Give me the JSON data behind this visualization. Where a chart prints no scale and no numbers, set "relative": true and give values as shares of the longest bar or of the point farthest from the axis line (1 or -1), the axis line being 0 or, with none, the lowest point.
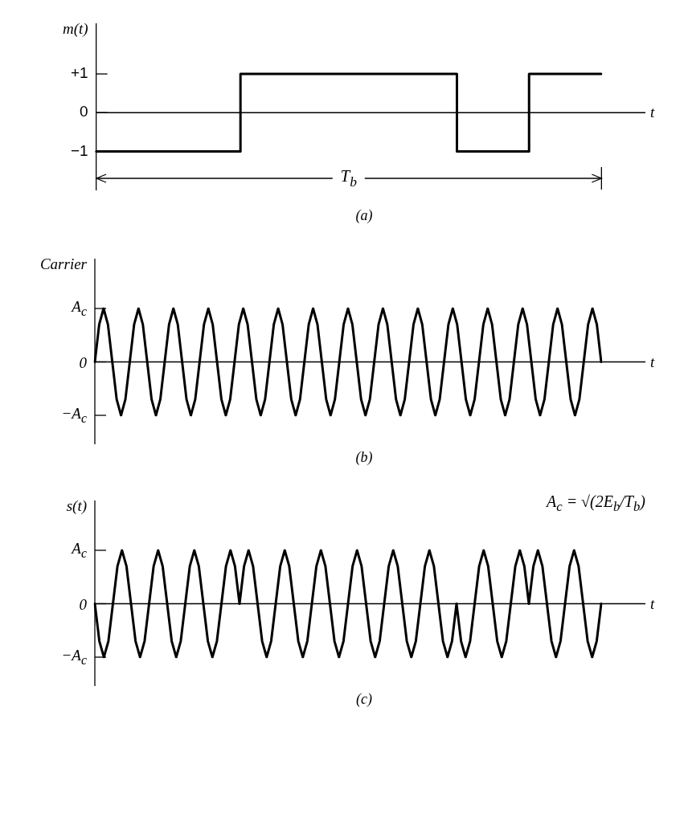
{
  "chart_data": [
    {
      "type": "step",
      "title": "(a)",
      "ylabel": "m(t)",
      "xlabel": "t",
      "ylim": [
        -2,
        2.3
      ],
      "yticks": [
        {
          "value": 1,
          "label": "+1"
        },
        0,
        {
          "value": -1,
          "label": "−1"
        }
      ],
      "tick_labels": "y",
      "marker": "none",
      "categories": [
        null,
        null,
        null,
        null,
        null,
        null,
        null,
        null,
        null,
        null,
        null,
        null,
        null,
        null,
        null
      ],
      "series": [
        {
          "color": "#000000",
          "values": [
            -1,
            -1,
            -1,
            -1,
            1,
            1,
            1,
            1,
            1,
            1,
            -1,
            -1,
            1,
            1,
            1
          ]
        }
      ],
      "annotations": [
        {
          "text": "T$_{b}$",
          "y": -1.7
        }
      ]
    },
    {
      "type": "line",
      "title": "(b)",
      "ylabel": "Carrier",
      "xlabel": "t",
      "relative": true,
      "tick_labels": false,
      "marker": "none",
      "annotations": [
        "A$_{c}$",
        "0",
        "−A$_{c}$"
      ],
      "categories": [
        null,
        null,
        null,
        null,
        null,
        null,
        null,
        null,
        null,
        null,
        null,
        null,
        null,
        null,
        null,
        null,
        null,
        null,
        null,
        null,
        null,
        null,
        null,
        null,
        null,
        null,
        null,
        null,
        null,
        null,
        null,
        null,
        null,
        null,
        null,
        null,
        null,
        null,
        null,
        null,
        null,
        null,
        null,
        null,
        null,
        null,
        null,
        null,
        null,
        null,
        null,
        null,
        null,
        null,
        null,
        null,
        null,
        null,
        null,
        null,
        null,
        null,
        null,
        null,
        null,
        null,
        null,
        null,
        null,
        null,
        null,
        null,
        null,
        null,
        null,
        null,
        null,
        null,
        null,
        null,
        null,
        null,
        null,
        null,
        null,
        null,
        null,
        null,
        null,
        null,
        null,
        null,
        null,
        null,
        null,
        null,
        null,
        null,
        null,
        null,
        null,
        null,
        null,
        null,
        null,
        null,
        null,
        null,
        null,
        null,
        null,
        null,
        null,
        null,
        null,
        null,
        null
      ],
      "series": [
        {
          "color": "#000000",
          "values": [
            0,
            0.7,
            1,
            0.7,
            0,
            -0.7,
            -1,
            -0.7,
            0,
            0.7,
            1,
            0.7,
            0,
            -0.7,
            -1,
            -0.7,
            0,
            0.7,
            1,
            0.7,
            0,
            -0.7,
            -1,
            -0.7,
            0,
            0.7,
            1,
            0.7,
            0,
            -0.7,
            -1,
            -0.7,
            0,
            0.7,
            1,
            0.7,
            0,
            -0.7,
            -1,
            -0.7,
            0,
            0.7,
            1,
            0.7,
            0,
            -0.7,
            -1,
            -0.7,
            0,
            0.7,
            1,
            0.7,
            0,
            -0.7,
            -1,
            -0.7,
            0,
            0.7,
            1,
            0.7,
            0,
            -0.7,
            -1,
            -0.7,
            0,
            0.7,
            1,
            0.7,
            0,
            -0.7,
            -1,
            -0.7,
            0,
            0.7,
            1,
            0.7,
            0,
            -0.7,
            -1,
            -0.7,
            0,
            0.7,
            1,
            0.7,
            0,
            -0.7,
            -1,
            -0.7,
            0,
            0.7,
            1,
            0.7,
            0,
            -0.7,
            -1,
            -0.7,
            0,
            0.7,
            1,
            0.7,
            0,
            -0.7,
            -1,
            -0.7,
            0,
            0.7,
            1,
            0.7,
            0,
            -0.7,
            -1,
            -0.7,
            0,
            0.7,
            1,
            0.7,
            0
          ]
        }
      ]
    },
    {
      "type": "line",
      "title": "(c)",
      "ylabel": "s(t)",
      "xlabel": "t",
      "relative": true,
      "tick_labels": false,
      "marker": "none",
      "categories": [
        null,
        null,
        null,
        null,
        null,
        null,
        null,
        null,
        null,
        null,
        null,
        null,
        null,
        null,
        null,
        null,
        null,
        null,
        null,
        null,
        null,
        null,
        null,
        null,
        null,
        null,
        null,
        null,
        null,
        null,
        null,
        null,
        null,
        null,
        null,
        null,
        null,
        null,
        null,
        null,
        null,
        null,
        null,
        null,
        null,
        null,
        null,
        null,
        null,
        null,
        null,
        null,
        null,
        null,
        null,
        null,
        null,
        null,
        null,
        null,
        null,
        null,
        null,
        null,
        null,
        null,
        null,
        null,
        null,
        null,
        null,
        null,
        null,
        null,
        null,
        null,
        null,
        null,
        null,
        null,
        null,
        null,
        null,
        null,
        null,
        null,
        null,
        null,
        null,
        null,
        null,
        null,
        null,
        null,
        null,
        null,
        null,
        null,
        null,
        null,
        null,
        null,
        null,
        null,
        null,
        null,
        null,
        null,
        null,
        null,
        null,
        null,
        null
      ],
      "series": [
        {
          "color": "#000000",
          "values": [
            0,
            -0.7,
            -1,
            -0.7,
            0,
            0.7,
            1,
            0.7,
            0,
            -0.7,
            -1,
            -0.7,
            0,
            0.7,
            1,
            0.7,
            0,
            -0.7,
            -1,
            -0.7,
            0,
            0.7,
            1,
            0.7,
            0,
            -0.7,
            -1,
            -0.7,
            0,
            0.7,
            1,
            0.7,
            0,
            0.7,
            1,
            0.7,
            0,
            -0.7,
            -1,
            -0.7,
            0,
            0.7,
            1,
            0.7,
            0,
            -0.7,
            -1,
            -0.7,
            0,
            0.7,
            1,
            0.7,
            0,
            -0.7,
            -1,
            -0.7,
            0,
            0.7,
            1,
            0.7,
            0,
            -0.7,
            -1,
            -0.7,
            0,
            0.7,
            1,
            0.7,
            0,
            -0.7,
            -1,
            -0.7,
            0,
            0.7,
            1,
            0.7,
            0,
            -0.7,
            -1,
            -0.7,
            0,
            -0.7,
            -1,
            -0.7,
            0,
            0.7,
            1,
            0.7,
            0,
            -0.7,
            -1,
            -0.7,
            0,
            0.7,
            1,
            0.7,
            0,
            0.7,
            1,
            0.7,
            0,
            -0.7,
            -1,
            -0.7,
            0,
            0.7,
            1,
            0.7,
            0,
            -0.7,
            -1,
            -0.7,
            0
          ]
        }
      ],
      "annotations": [
        "A$_{c}$",
        "0",
        "−A$_{c}$",
        "A$_{c}$ = √(2E$_{b}$/T$_{b}$)"
      ]
    }
  ]
}
